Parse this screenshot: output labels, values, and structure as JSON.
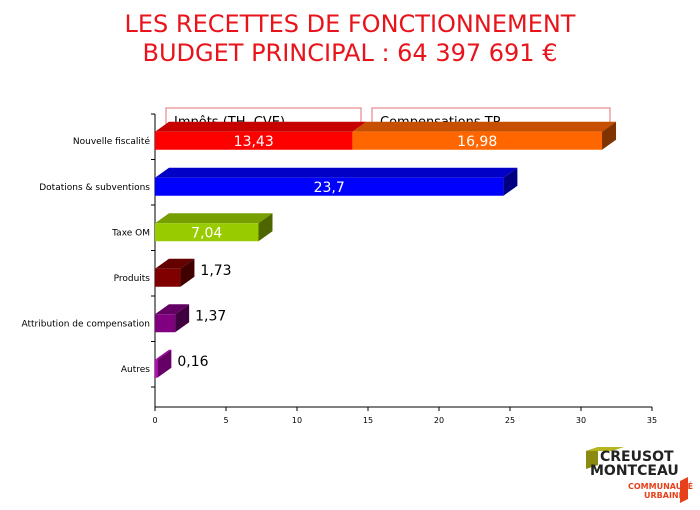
{
  "title": {
    "line1": "LES RECETTES DE FONCTIONNEMENT",
    "line2": "BUDGET PRINCIPAL : 64 397 691  €"
  },
  "logo": {
    "line1": "CREUSOT",
    "line2": "MONTCEAU",
    "line3": "COMMUNAUTÉ",
    "line4": "URBAINE"
  },
  "chart_data": {
    "type": "bar",
    "orientation": "horizontal",
    "stacked": true,
    "style": "3d",
    "categories": [
      "Nouvelle fiscalité",
      "Dotations & subventions",
      "Taxe OM",
      "Produits",
      "Attribution de compensation",
      "Autres"
    ],
    "series": [
      {
        "name": "Impôts (TH, CVE)",
        "values": [
          13.43,
          23.7,
          7.04,
          1.73,
          1.37,
          0.16
        ],
        "labels": [
          "13,43",
          "23,7",
          "7,04",
          "1,73",
          "1,37",
          "0,16"
        ],
        "colors": [
          "#ff0000",
          "#0000ff",
          "#99cc00",
          "#800000",
          "#800080",
          "#cc00cc"
        ]
      },
      {
        "name": "Compensations TP",
        "values": [
          16.98,
          0,
          0,
          0,
          0,
          0
        ],
        "labels": [
          "16,98",
          "",
          "",
          "",
          "",
          ""
        ],
        "colors": [
          "#ff6600"
        ]
      }
    ],
    "xlim": [
      0,
      35
    ],
    "xticks": [
      "0",
      "5",
      "10",
      "15",
      "20",
      "25",
      "30",
      "35"
    ],
    "grid": false,
    "legend": "top"
  }
}
